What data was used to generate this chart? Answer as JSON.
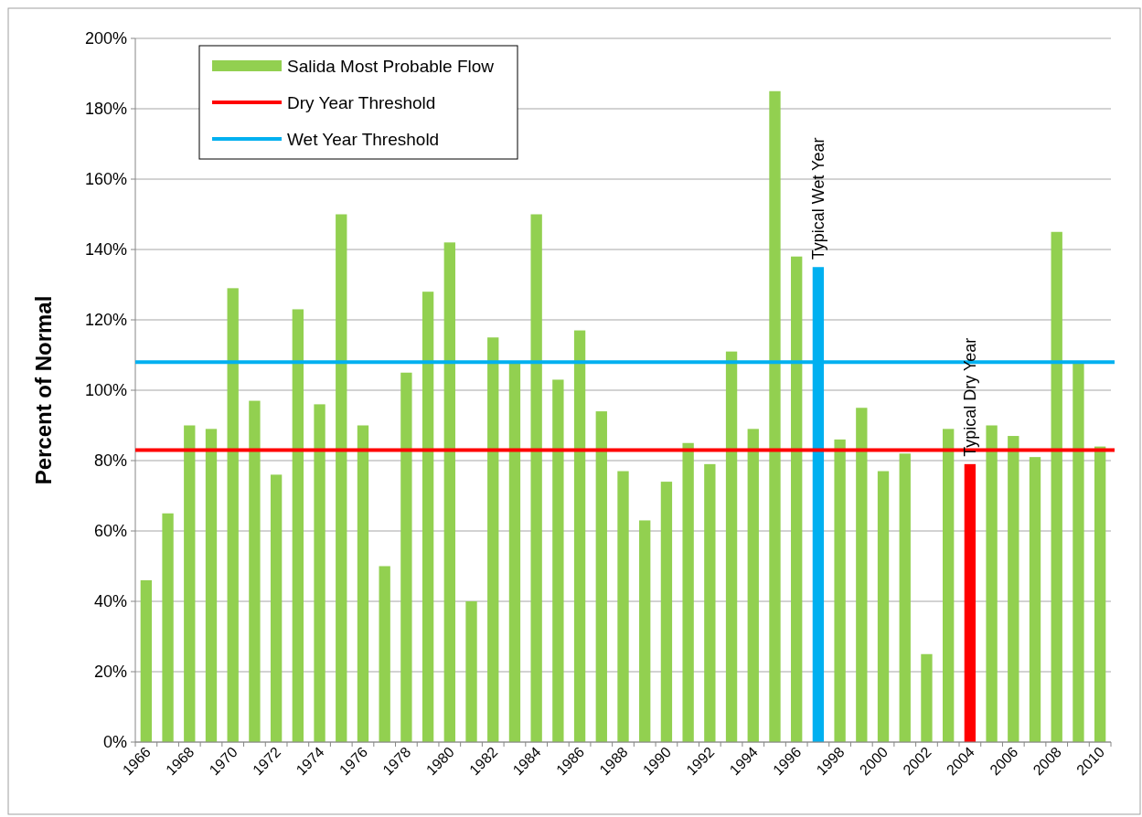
{
  "chart_data": {
    "type": "bar",
    "ylabel": "Percent of Normal",
    "categories": [
      "1966",
      null,
      "1968",
      null,
      "1970",
      null,
      "1972",
      null,
      "1974",
      null,
      "1976",
      null,
      "1978",
      null,
      "1980",
      null,
      "1982",
      null,
      "1984",
      null,
      "1986",
      null,
      "1988",
      null,
      "1990",
      null,
      "1992",
      null,
      "1994",
      null,
      "1996",
      null,
      "1998",
      null,
      "2000",
      null,
      "2002",
      null,
      "2004",
      null,
      "2006",
      null,
      "2008",
      null,
      "2010"
    ],
    "series": [
      {
        "name": "Salida Most Probable Flow",
        "color": "#92d050",
        "colors": [
          "#92d050",
          "#92d050",
          "#92d050",
          "#92d050",
          "#92d050",
          "#92d050",
          "#92d050",
          "#92d050",
          "#92d050",
          "#92d050",
          "#92d050",
          "#92d050",
          "#92d050",
          "#92d050",
          "#92d050",
          "#92d050",
          "#92d050",
          "#92d050",
          "#92d050",
          "#92d050",
          "#92d050",
          "#92d050",
          "#92d050",
          "#92d050",
          "#92d050",
          "#92d050",
          "#92d050",
          "#92d050",
          "#92d050",
          "#92d050",
          "#92d050",
          "#00b0f0",
          "#92d050",
          "#92d050",
          "#92d050",
          "#92d050",
          "#92d050",
          "#92d050",
          "#ff0000",
          "#92d050",
          "#92d050",
          "#92d050",
          "#92d050",
          "#92d050",
          "#92d050"
        ],
        "values": [
          46,
          65,
          90,
          89,
          129,
          97,
          76,
          123,
          96,
          150,
          90,
          50,
          105,
          128,
          142,
          40,
          115,
          108,
          150,
          103,
          117,
          94,
          77,
          63,
          74,
          85,
          79,
          111,
          89,
          185,
          138,
          135,
          86,
          95,
          77,
          82,
          25,
          89,
          79,
          90,
          87,
          81,
          145,
          108,
          84
        ]
      }
    ],
    "ref_lines": [
      {
        "axis": "y",
        "value": 83,
        "label": "Dry Year Threshold",
        "color": "#ff0000"
      },
      {
        "axis": "y",
        "value": 108,
        "label": "Wet Year Threshold",
        "color": "#00b0f0"
      }
    ],
    "annotations": [
      {
        "text": "Typical Wet Year",
        "y": 135
      },
      {
        "text": "Typical Dry Year",
        "y": 79
      }
    ],
    "ylim": [
      0,
      200
    ],
    "yticks": [
      {
        "value": 0,
        "label": "0%"
      },
      {
        "value": 20,
        "label": "20%"
      },
      {
        "value": 40,
        "label": "40%"
      },
      {
        "value": 60,
        "label": "60%"
      },
      {
        "value": 80,
        "label": "80%"
      },
      {
        "value": 100,
        "label": "100%"
      },
      {
        "value": 120,
        "label": "120%"
      },
      {
        "value": 140,
        "label": "140%"
      },
      {
        "value": 160,
        "label": "160%"
      },
      {
        "value": 180,
        "label": "180%"
      },
      {
        "value": 200,
        "label": "200%"
      }
    ],
    "grid": "y",
    "legend": "top left"
  }
}
